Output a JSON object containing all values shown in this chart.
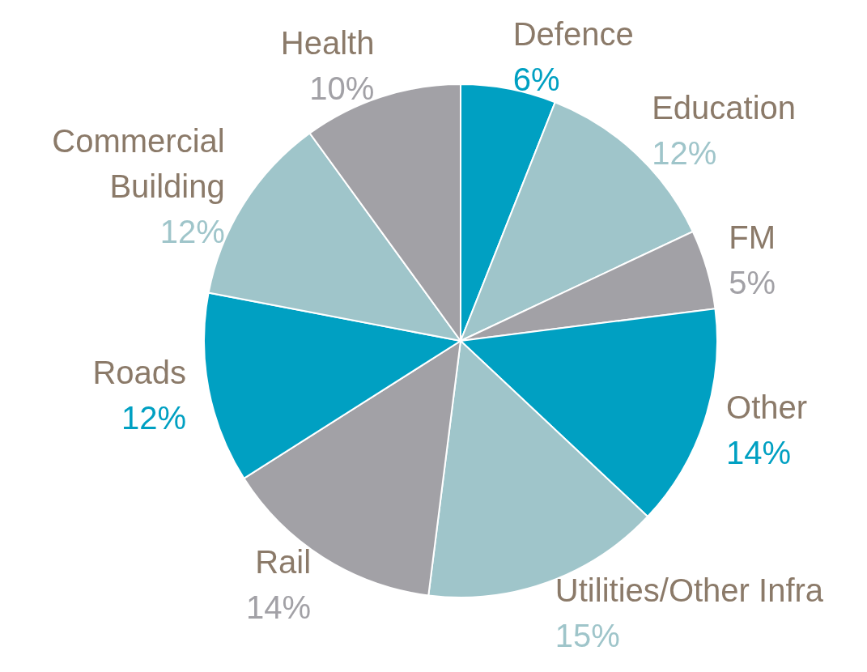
{
  "chart_data": {
    "type": "pie",
    "categories": [
      "Defence",
      "Education",
      "FM",
      "Other",
      "Utilities/Other Infra",
      "Rail",
      "Roads",
      "Commercial Building",
      "Health"
    ],
    "values": [
      6,
      12,
      5,
      14,
      15,
      14,
      12,
      12,
      10
    ],
    "colors": [
      "#00a0c2",
      "#9fc5ca",
      "#a2a1a6",
      "#00a0c2",
      "#9fc5ca",
      "#a2a1a6",
      "#00a0c2",
      "#9fc5ca",
      "#a2a1a6"
    ],
    "value_labels": [
      "6%",
      "12%",
      "5%",
      "14%",
      "15%",
      "14%",
      "12%",
      "12%",
      "10%"
    ]
  }
}
